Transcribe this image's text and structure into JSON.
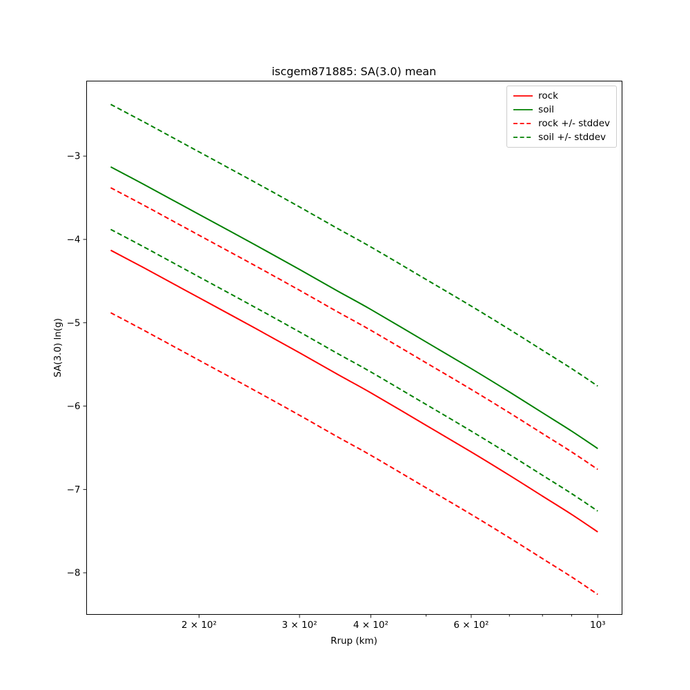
{
  "figure": {
    "title": "iscgem871885: SA(3.0) mean",
    "xlabel": "Rrup (km)",
    "ylabel": "SA(3.0) ln(g)"
  },
  "legend": {
    "position": "upper right",
    "items": [
      {
        "label": "rock",
        "color": "#ff0000",
        "dash": false
      },
      {
        "label": "soil",
        "color": "#008000",
        "dash": false
      },
      {
        "label": "rock +/- stddev",
        "color": "#ff0000",
        "dash": true
      },
      {
        "label": "soil +/- stddev",
        "color": "#008000",
        "dash": true
      }
    ]
  },
  "chart_data": {
    "type": "line",
    "title": "iscgem871885: SA(3.0) mean",
    "xlabel": "Rrup (km)",
    "ylabel": "SA(3.0) ln(g)",
    "x_scale": "log",
    "y_scale": "linear",
    "grid": false,
    "legend_position": "upper right",
    "xlim": [
      127,
      1103
    ],
    "ylim": [
      -8.5,
      -2.1
    ],
    "x": [
      140,
      160,
      180,
      200,
      250,
      300,
      350,
      400,
      500,
      600,
      700,
      800,
      900,
      1000
    ],
    "series": [
      {
        "name": "rock",
        "color": "#ff0000",
        "style": "solid",
        "values": [
          -4.13,
          -4.34,
          -4.53,
          -4.7,
          -5.06,
          -5.36,
          -5.62,
          -5.84,
          -6.23,
          -6.55,
          -6.83,
          -7.08,
          -7.3,
          -7.51
        ]
      },
      {
        "name": "soil",
        "color": "#008000",
        "style": "solid",
        "values": [
          -3.13,
          -3.34,
          -3.53,
          -3.7,
          -4.06,
          -4.36,
          -4.62,
          -4.84,
          -5.23,
          -5.55,
          -5.83,
          -6.08,
          -6.3,
          -6.51
        ]
      },
      {
        "name": "rock +stddev",
        "color": "#ff0000",
        "style": "dashed",
        "values": [
          -3.38,
          -3.59,
          -3.78,
          -3.95,
          -4.31,
          -4.61,
          -4.87,
          -5.09,
          -5.48,
          -5.8,
          -6.08,
          -6.33,
          -6.55,
          -6.76
        ]
      },
      {
        "name": "rock -stddev",
        "color": "#ff0000",
        "style": "dashed",
        "values": [
          -4.88,
          -5.09,
          -5.28,
          -5.45,
          -5.81,
          -6.11,
          -6.37,
          -6.59,
          -6.98,
          -7.3,
          -7.58,
          -7.83,
          -8.05,
          -8.26
        ]
      },
      {
        "name": "soil +stddev",
        "color": "#008000",
        "style": "dashed",
        "values": [
          -2.38,
          -2.59,
          -2.78,
          -2.95,
          -3.31,
          -3.61,
          -3.87,
          -4.09,
          -4.48,
          -4.8,
          -5.08,
          -5.33,
          -5.55,
          -5.76
        ]
      },
      {
        "name": "soil -stddev",
        "color": "#008000",
        "style": "dashed",
        "values": [
          -3.88,
          -4.09,
          -4.28,
          -4.45,
          -4.81,
          -5.11,
          -5.37,
          -5.59,
          -5.98,
          -6.3,
          -6.58,
          -6.83,
          -7.05,
          -7.26
        ]
      }
    ],
    "x_ticks": [
      {
        "value": 200,
        "label": "2 × 10²"
      },
      {
        "value": 300,
        "label": "3 × 10²"
      },
      {
        "value": 400,
        "label": "4 × 10²"
      },
      {
        "value": 500
      },
      {
        "value": 600,
        "label": "6 × 10²"
      },
      {
        "value": 700
      },
      {
        "value": 800
      },
      {
        "value": 900
      },
      {
        "value": 1000,
        "label": "10³"
      }
    ],
    "y_ticks": [
      {
        "value": -3,
        "label": "−3"
      },
      {
        "value": -4,
        "label": "−4"
      },
      {
        "value": -5,
        "label": "−5"
      },
      {
        "value": -6,
        "label": "−6"
      },
      {
        "value": -7,
        "label": "−7"
      },
      {
        "value": -8,
        "label": "−8"
      }
    ]
  }
}
